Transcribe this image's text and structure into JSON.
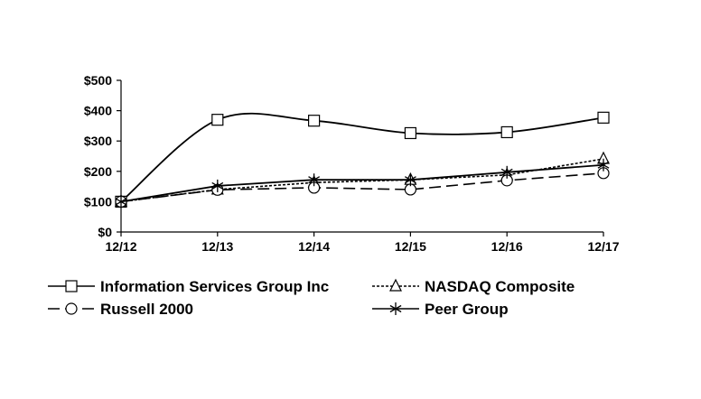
{
  "chart_data": {
    "type": "line",
    "title": "",
    "xlabel": "",
    "ylabel": "",
    "categories": [
      "12/12",
      "12/13",
      "12/14",
      "12/15",
      "12/16",
      "12/17"
    ],
    "y_ticks": [
      "$0",
      "$100",
      "$200",
      "$300",
      "$400",
      "$500"
    ],
    "y_tick_values": [
      0,
      100,
      200,
      300,
      400,
      500
    ],
    "ylim": [
      0,
      500
    ],
    "grid": false,
    "legend_position": "bottom",
    "series": [
      {
        "name": "Information Services Group Inc",
        "values": [
          100,
          370,
          367,
          326,
          329,
          377
        ],
        "marker": "square",
        "dash": "solid",
        "smooth": true
      },
      {
        "name": "NASDAQ Composite",
        "values": [
          100,
          140,
          163,
          172,
          188,
          241
        ],
        "marker": "triangle",
        "dash": "dotted",
        "smooth": false
      },
      {
        "name": "Russell 2000",
        "values": [
          100,
          139,
          146,
          140,
          170,
          194
        ],
        "marker": "circle",
        "dash": "dashed",
        "smooth": false
      },
      {
        "name": "Peer Group",
        "values": [
          100,
          152,
          172,
          172,
          197,
          221
        ],
        "marker": "asterisk",
        "dash": "solid",
        "smooth": false
      }
    ]
  }
}
